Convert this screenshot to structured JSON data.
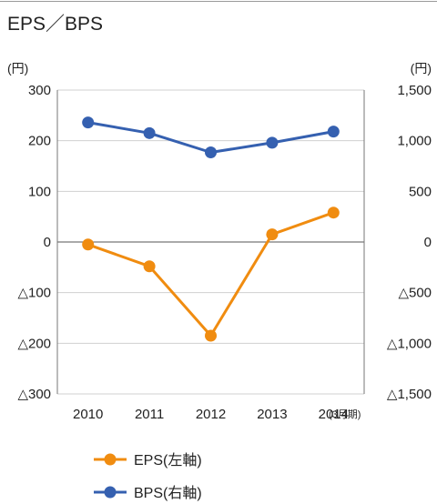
{
  "chart_data": {
    "type": "line",
    "title": "EPS／BPS",
    "categories": [
      "2010",
      "2011",
      "2012",
      "2013",
      "2014"
    ],
    "period_suffix": "(3月期)",
    "left_axis": {
      "unit": "(円)",
      "ylim": [
        -300,
        300
      ],
      "ticks": [
        300,
        200,
        100,
        0,
        -100,
        -200,
        -300
      ],
      "tick_labels": [
        "300",
        "200",
        "100",
        "0",
        "△100",
        "△200",
        "△300"
      ]
    },
    "right_axis": {
      "unit": "(円)",
      "ylim": [
        -1500,
        1500
      ],
      "ticks": [
        1500,
        1000,
        500,
        0,
        -500,
        -1000,
        -1500
      ],
      "tick_labels": [
        "1,500",
        "1,000",
        "500",
        "0",
        "△500",
        "△1,000",
        "△1,500"
      ]
    },
    "series": [
      {
        "name": "EPS(左軸)",
        "axis": "left",
        "color": "#f08c10",
        "values": [
          -5,
          -48,
          -185,
          15,
          58
        ]
      },
      {
        "name": "BPS(右軸)",
        "axis": "right",
        "color": "#3560b0",
        "values": [
          1180,
          1075,
          885,
          980,
          1090
        ]
      }
    ],
    "grid": true,
    "legend_position": "bottom-left"
  }
}
